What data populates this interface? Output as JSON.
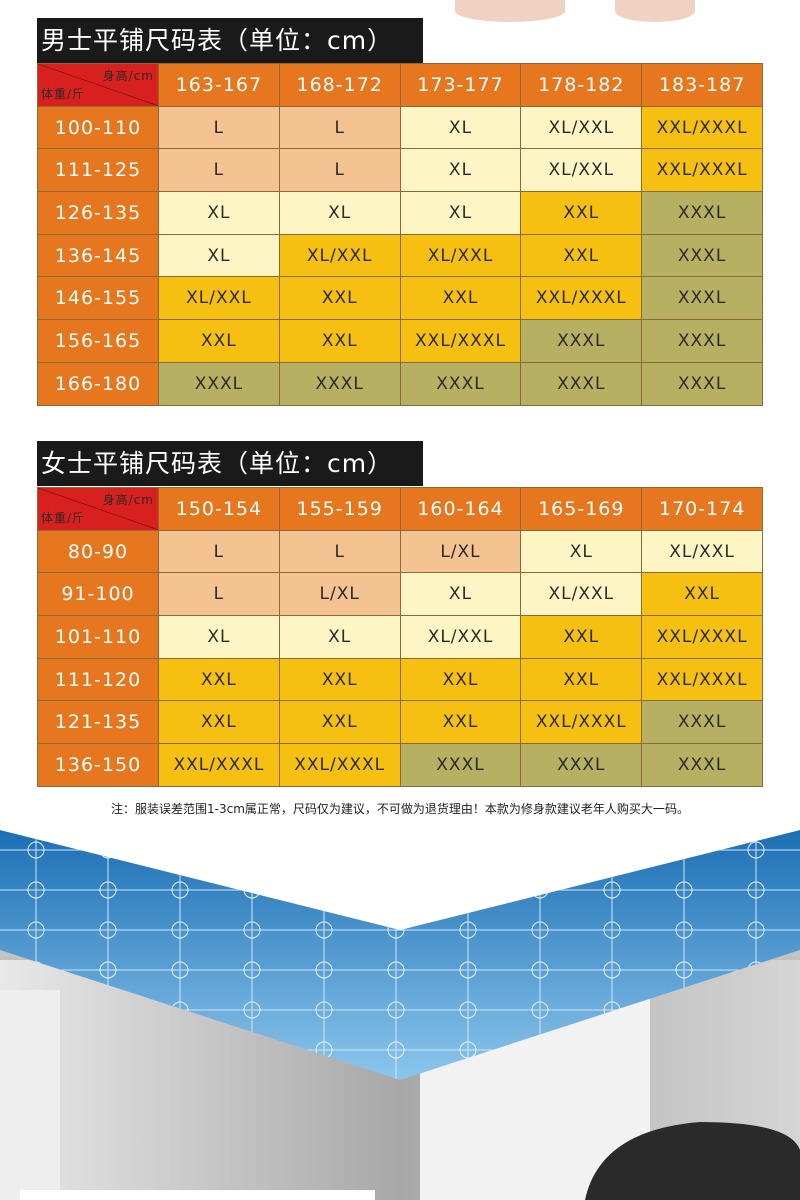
{
  "palette": {
    "header": "#e6771f",
    "corner": "#d8201e",
    "p": "#f5c391",
    "c": "#fdf6c4",
    "y": "#f6c012",
    "o": "#b7b063"
  },
  "men": {
    "title": "男士平铺尺码表（单位：cm）",
    "corner_height": "身高/cm",
    "corner_weight": "体重/斤",
    "heights": [
      "163-167",
      "168-172",
      "173-177",
      "178-182",
      "183-187"
    ],
    "rows": [
      {
        "weight": "100-110",
        "cells": [
          [
            "L",
            "p"
          ],
          [
            "L",
            "p"
          ],
          [
            "XL",
            "c"
          ],
          [
            "XL/XXL",
            "c"
          ],
          [
            "XXL/XXXL",
            "y"
          ]
        ]
      },
      {
        "weight": "111-125",
        "cells": [
          [
            "L",
            "p"
          ],
          [
            "L",
            "p"
          ],
          [
            "XL",
            "c"
          ],
          [
            "XL/XXL",
            "c"
          ],
          [
            "XXL/XXXL",
            "y"
          ]
        ]
      },
      {
        "weight": "126-135",
        "cells": [
          [
            "XL",
            "c"
          ],
          [
            "XL",
            "c"
          ],
          [
            "XL",
            "c"
          ],
          [
            "XXL",
            "y"
          ],
          [
            "XXXL",
            "o"
          ]
        ]
      },
      {
        "weight": "136-145",
        "cells": [
          [
            "XL",
            "c"
          ],
          [
            "XL/XXL",
            "y"
          ],
          [
            "XL/XXL",
            "y"
          ],
          [
            "XXL",
            "y"
          ],
          [
            "XXXL",
            "o"
          ]
        ]
      },
      {
        "weight": "146-155",
        "cells": [
          [
            "XL/XXL",
            "y"
          ],
          [
            "XXL",
            "y"
          ],
          [
            "XXL",
            "y"
          ],
          [
            "XXL/XXXL",
            "y"
          ],
          [
            "XXXL",
            "o"
          ]
        ]
      },
      {
        "weight": "156-165",
        "cells": [
          [
            "XXL",
            "y"
          ],
          [
            "XXL",
            "y"
          ],
          [
            "XXL/XXXL",
            "y"
          ],
          [
            "XXXL",
            "o"
          ],
          [
            "XXXL",
            "o"
          ]
        ]
      },
      {
        "weight": "166-180",
        "cells": [
          [
            "XXXL",
            "o"
          ],
          [
            "XXXL",
            "o"
          ],
          [
            "XXXL",
            "o"
          ],
          [
            "XXXL",
            "o"
          ],
          [
            "XXXL",
            "o"
          ]
        ]
      }
    ]
  },
  "women": {
    "title": "女士平铺尺码表（单位：cm）",
    "corner_height": "身高/cm",
    "corner_weight": "体重/斤",
    "heights": [
      "150-154",
      "155-159",
      "160-164",
      "165-169",
      "170-174"
    ],
    "rows": [
      {
        "weight": "80-90",
        "cells": [
          [
            "L",
            "p"
          ],
          [
            "L",
            "p"
          ],
          [
            "L/XL",
            "p"
          ],
          [
            "XL",
            "c"
          ],
          [
            "XL/XXL",
            "c"
          ]
        ]
      },
      {
        "weight": "91-100",
        "cells": [
          [
            "L",
            "p"
          ],
          [
            "L/XL",
            "p"
          ],
          [
            "XL",
            "c"
          ],
          [
            "XL/XXL",
            "c"
          ],
          [
            "XXL",
            "y"
          ]
        ]
      },
      {
        "weight": "101-110",
        "cells": [
          [
            "XL",
            "c"
          ],
          [
            "XL",
            "c"
          ],
          [
            "XL/XXL",
            "c"
          ],
          [
            "XXL",
            "y"
          ],
          [
            "XXL/XXXL",
            "y"
          ]
        ]
      },
      {
        "weight": "111-120",
        "cells": [
          [
            "XXL",
            "y"
          ],
          [
            "XXL",
            "y"
          ],
          [
            "XXL",
            "y"
          ],
          [
            "XXL",
            "y"
          ],
          [
            "XXL/XXXL",
            "y"
          ]
        ]
      },
      {
        "weight": "121-135",
        "cells": [
          [
            "XXL",
            "y"
          ],
          [
            "XXL",
            "y"
          ],
          [
            "XXL",
            "y"
          ],
          [
            "XXL/XXXL",
            "y"
          ],
          [
            "XXXL",
            "o"
          ]
        ]
      },
      {
        "weight": "136-150",
        "cells": [
          [
            "XXL/XXXL",
            "y"
          ],
          [
            "XXL/XXXL",
            "y"
          ],
          [
            "XXXL",
            "o"
          ],
          [
            "XXXL",
            "o"
          ],
          [
            "XXXL",
            "o"
          ]
        ]
      }
    ]
  },
  "note": "注：服装误差范围1-3cm属正常，尺码仅为建议，不可做为退货理由！本款为修身款建议老年人购买大一码。"
}
